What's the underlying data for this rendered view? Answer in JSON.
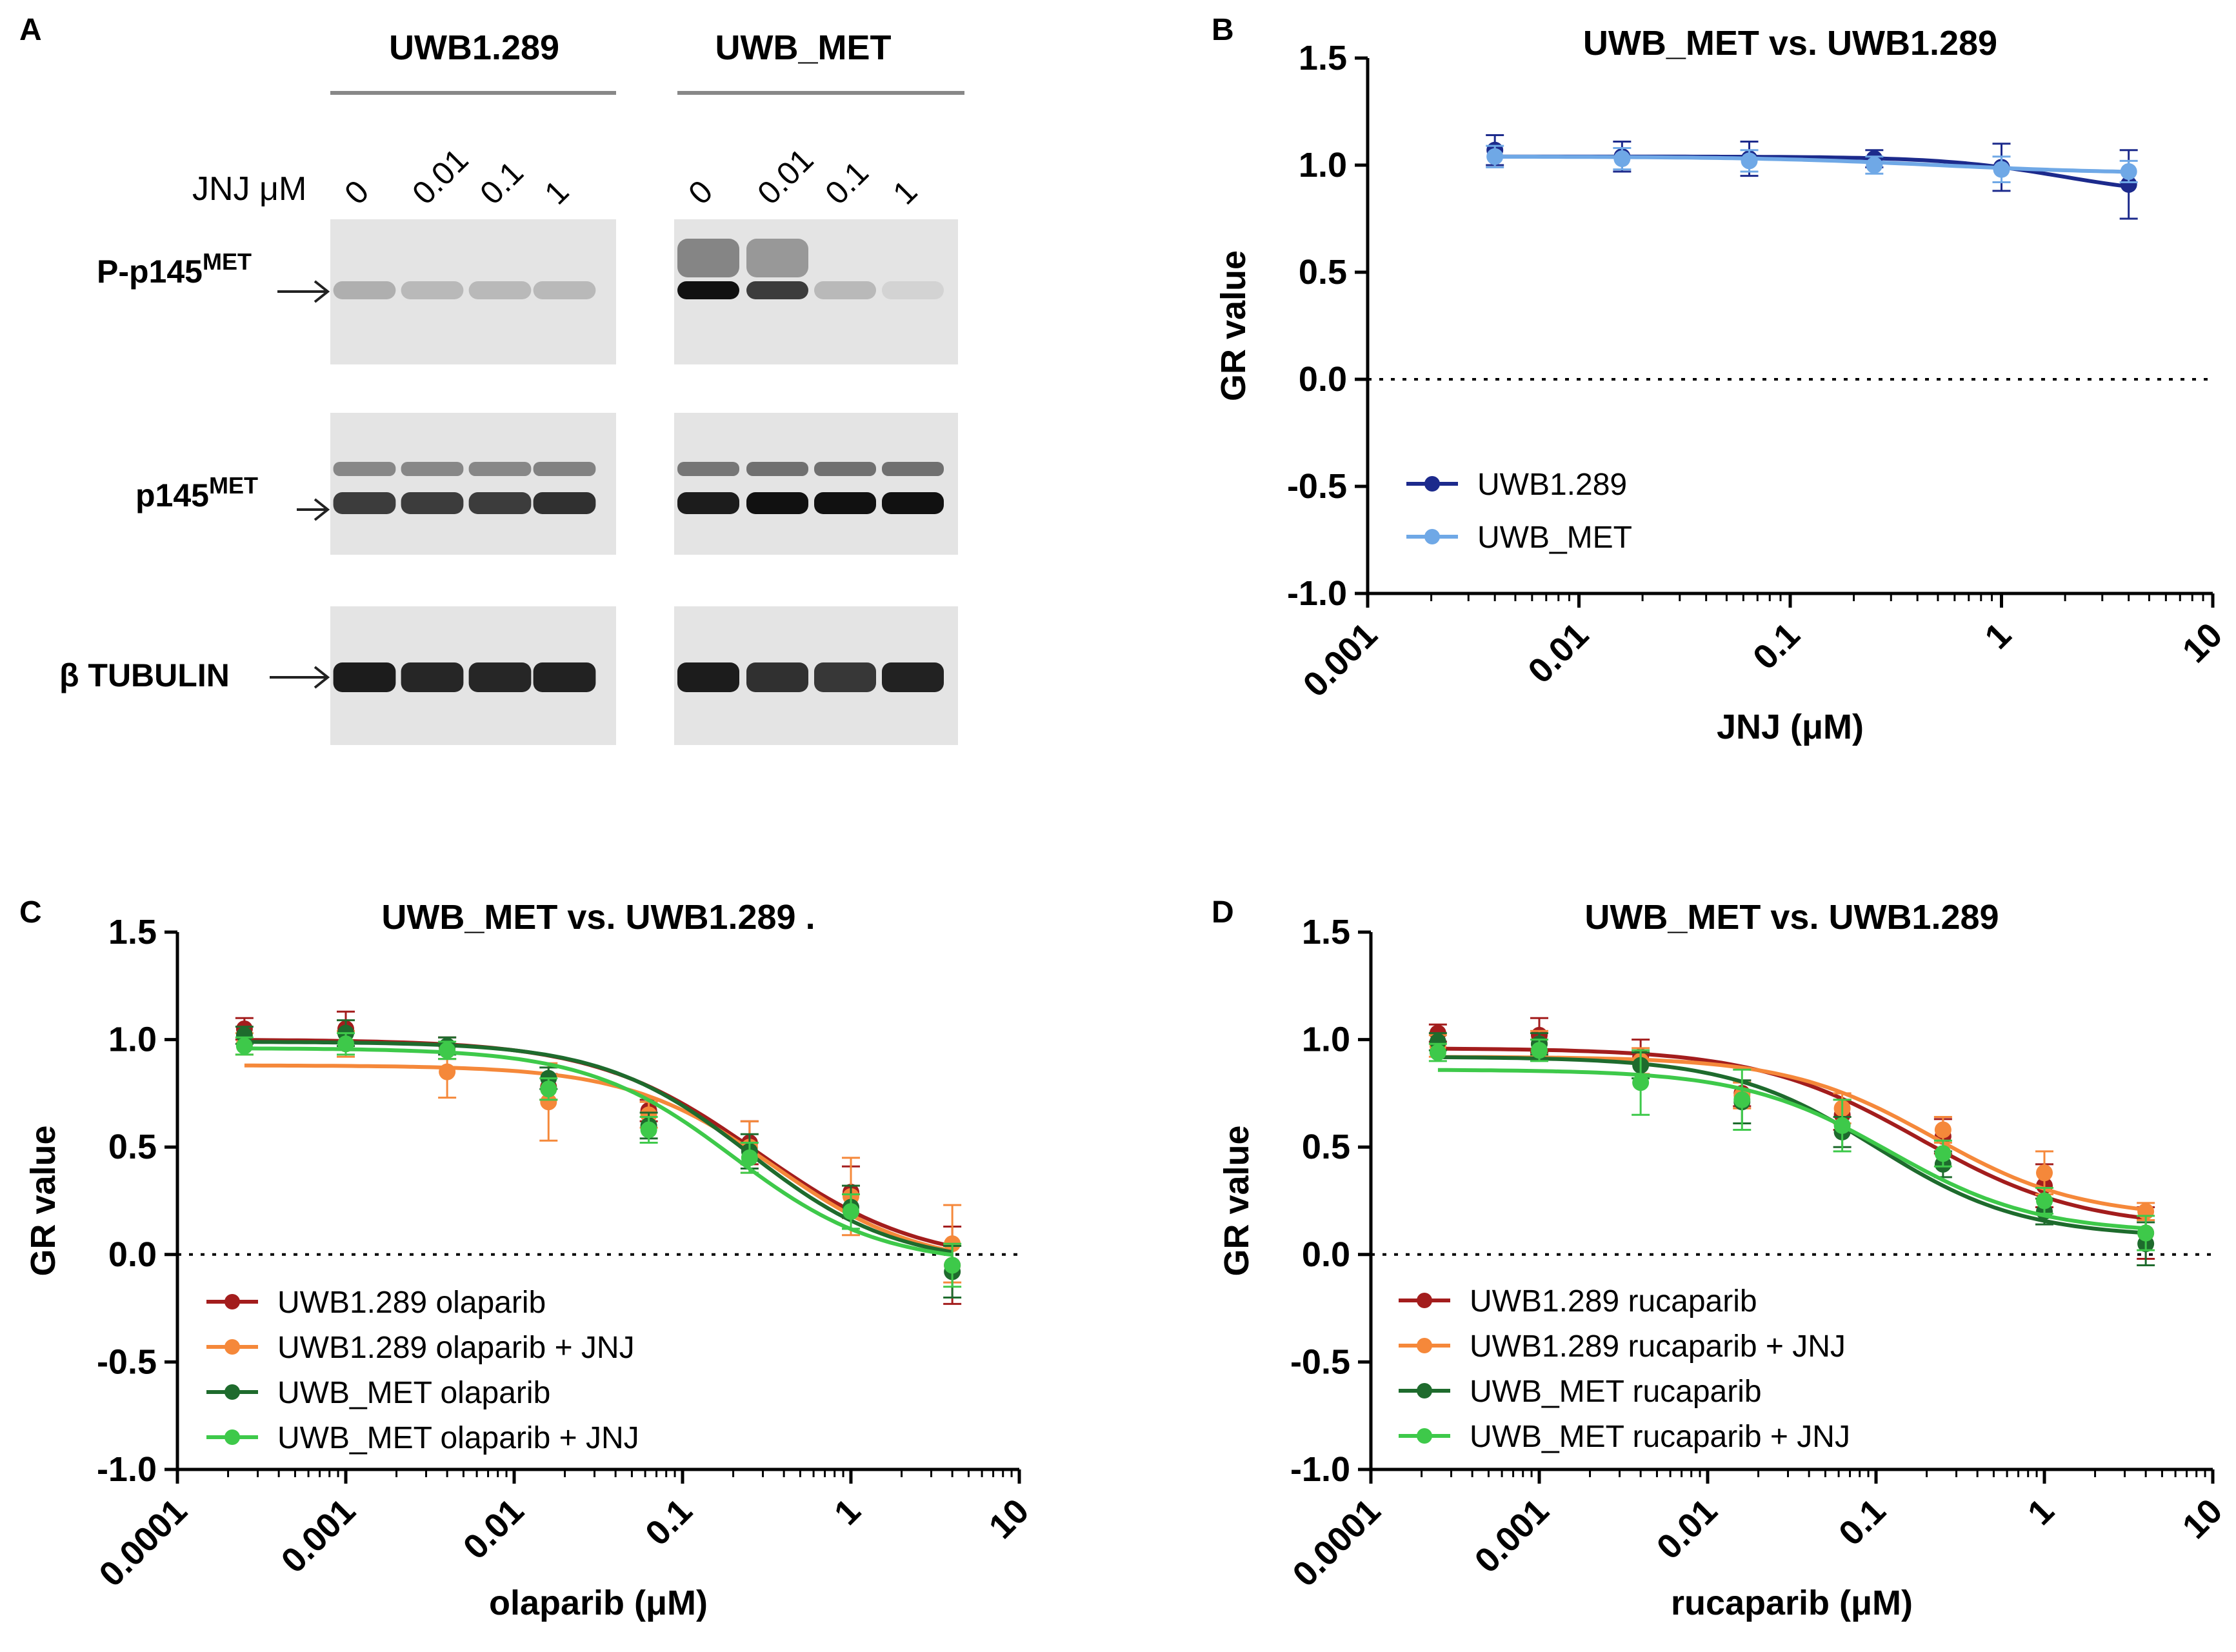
{
  "figure": {
    "panel_labels": [
      "A",
      "B",
      "C",
      "D"
    ]
  },
  "panel_a": {
    "cell_lines": [
      "UWB1.289",
      "UWB_MET"
    ],
    "dose_label": "JNJ μM",
    "doses": [
      "0",
      "0.01",
      "0.1",
      "1"
    ],
    "rows": [
      {
        "name": "P-p145",
        "sup": "MET"
      },
      {
        "name": "p145",
        "sup": "MET"
      },
      {
        "name": "β TUBULIN",
        "sup": ""
      }
    ],
    "band_intensity": {
      "UWB1.289": {
        "P-p145MET": [
          0.25,
          0.2,
          0.2,
          0.2
        ],
        "p145MET": [
          0.8,
          0.8,
          0.8,
          0.85
        ],
        "beta_tubulin": [
          0.95,
          0.9,
          0.9,
          0.92
        ]
      },
      "UWB_MET": {
        "P-p145MET": [
          1.0,
          0.8,
          0.2,
          0.08
        ],
        "p145MET": [
          0.95,
          1.0,
          1.0,
          1.0
        ],
        "beta_tubulin": [
          0.95,
          0.85,
          0.82,
          0.92
        ]
      }
    },
    "colors": {
      "blot_bg": "#e4e4e4",
      "band": "#111111",
      "bracket": "#888888"
    }
  },
  "chart_data": [
    {
      "id": "B",
      "type": "line",
      "title": "UWB_MET vs. UWB1.289",
      "xlabel": "JNJ (μM)",
      "ylabel": "GR value",
      "xscale": "log",
      "xlim": [
        0.001,
        10
      ],
      "ylim": [
        -1.0,
        1.5
      ],
      "xticks": [
        "0.001",
        "0.01",
        "0.1",
        "1",
        "10"
      ],
      "yticks": [
        "1.5",
        "1.0",
        "0.5",
        "0.0",
        "-0.5",
        "-1.0"
      ],
      "reference_line": 0,
      "legend_position": "lower-left",
      "series": [
        {
          "name": "UWB1.289",
          "color": "#1c2a8c",
          "x": [
            0.004,
            0.016,
            0.064,
            0.25,
            1,
            4
          ],
          "y": [
            1.07,
            1.04,
            1.03,
            1.03,
            0.99,
            0.91
          ],
          "err": [
            0.07,
            0.07,
            0.08,
            0.04,
            0.11,
            0.16
          ],
          "fit": {
            "top": 1.04,
            "bottom": 0.85,
            "ec50": 2.0,
            "hill": 1.5
          }
        },
        {
          "name": "UWB_MET",
          "color": "#6fa8e6",
          "x": [
            0.004,
            0.016,
            0.064,
            0.25,
            1,
            4
          ],
          "y": [
            1.04,
            1.03,
            1.02,
            1.0,
            0.98,
            0.97
          ],
          "err": [
            0.05,
            0.05,
            0.05,
            0.04,
            0.06,
            0.05
          ],
          "fit": {
            "top": 1.04,
            "bottom": 0.96,
            "ec50": 0.5,
            "hill": 1.0
          }
        }
      ]
    },
    {
      "id": "C",
      "type": "line",
      "title": "UWB_MET vs. UWB1.289 .",
      "xlabel": "olaparib (μM)",
      "ylabel": "GR value",
      "xscale": "log",
      "xlim": [
        0.0001,
        10
      ],
      "ylim": [
        -1.0,
        1.5
      ],
      "xticks": [
        "0.0001",
        "0.001",
        "0.01",
        "0.1",
        "1",
        "10"
      ],
      "yticks": [
        "1.5",
        "1.0",
        "0.5",
        "0.0",
        "-0.5",
        "-1.0"
      ],
      "reference_line": 0,
      "legend_position": "lower-left",
      "series": [
        {
          "name": "UWB1.289 olaparib",
          "color": "#a31d1d",
          "x": [
            0.00025,
            0.001,
            0.004,
            0.016,
            0.063,
            0.25,
            1,
            4
          ],
          "y": [
            1.05,
            1.05,
            0.96,
            0.78,
            0.67,
            0.52,
            0.29,
            -0.05
          ],
          "err": [
            0.05,
            0.08,
            0.05,
            0.06,
            0.05,
            0.1,
            0.12,
            0.18
          ],
          "fit": {
            "top": 1.0,
            "bottom": -0.05,
            "ec50": 0.28,
            "hill": 0.9
          }
        },
        {
          "name": "UWB1.289 olaparib + JNJ",
          "color": "#f5883a",
          "x": [
            0.00025,
            0.001,
            0.004,
            0.016,
            0.063,
            0.25,
            1,
            4
          ],
          "y": [
            0.98,
            0.98,
            0.85,
            0.71,
            0.65,
            0.5,
            0.27,
            0.05
          ],
          "err": [
            0.05,
            0.06,
            0.12,
            0.18,
            0.06,
            0.12,
            0.18,
            0.18
          ],
          "fit": {
            "top": 0.88,
            "bottom": -0.06,
            "ec50": 0.35,
            "hill": 1.0
          }
        },
        {
          "name": "UWB_MET olaparib",
          "color": "#1e6b2d",
          "x": [
            0.00025,
            0.001,
            0.004,
            0.016,
            0.063,
            0.25,
            1,
            4
          ],
          "y": [
            1.02,
            1.03,
            0.97,
            0.82,
            0.6,
            0.48,
            0.22,
            -0.08
          ],
          "err": [
            0.04,
            0.06,
            0.04,
            0.05,
            0.06,
            0.08,
            0.1,
            0.12
          ],
          "fit": {
            "top": 0.99,
            "bottom": -0.05,
            "ec50": 0.25,
            "hill": 1.0
          }
        },
        {
          "name": "UWB_MET olaparib + JNJ",
          "color": "#3ec94a",
          "x": [
            0.00025,
            0.001,
            0.004,
            0.016,
            0.063,
            0.25,
            1,
            4
          ],
          "y": [
            0.97,
            0.98,
            0.95,
            0.77,
            0.58,
            0.45,
            0.2,
            -0.05
          ],
          "err": [
            0.04,
            0.05,
            0.04,
            0.05,
            0.06,
            0.07,
            0.08,
            0.1
          ],
          "fit": {
            "top": 0.96,
            "bottom": -0.05,
            "ec50": 0.2,
            "hill": 1.0
          }
        }
      ]
    },
    {
      "id": "D",
      "type": "line",
      "title": "UWB_MET vs. UWB1.289",
      "xlabel": "rucaparib (μM)",
      "ylabel": "GR value",
      "xscale": "log",
      "xlim": [
        0.0001,
        10
      ],
      "ylim": [
        -1.0,
        1.5
      ],
      "xticks": [
        "0.0001",
        "0.001",
        "0.01",
        "0.1",
        "1",
        "10"
      ],
      "yticks": [
        "1.5",
        "1.0",
        "0.5",
        "0.0",
        "-0.5",
        "-1.0"
      ],
      "reference_line": 0,
      "legend_position": "lower-left",
      "series": [
        {
          "name": "UWB1.289 rucaparib",
          "color": "#a31d1d",
          "x": [
            0.00025,
            0.001,
            0.004,
            0.016,
            0.063,
            0.25,
            1,
            4
          ],
          "y": [
            1.03,
            1.02,
            0.92,
            0.75,
            0.65,
            0.55,
            0.32,
            0.1
          ],
          "err": [
            0.04,
            0.08,
            0.08,
            0.06,
            0.07,
            0.08,
            0.1,
            0.12
          ],
          "fit": {
            "top": 0.96,
            "bottom": 0.12,
            "ec50": 0.18,
            "hill": 0.9
          }
        },
        {
          "name": "UWB1.289 rucaparib + JNJ",
          "color": "#f5883a",
          "x": [
            0.00025,
            0.001,
            0.004,
            0.016,
            0.063,
            0.25,
            1,
            4
          ],
          "y": [
            0.97,
            0.98,
            0.9,
            0.74,
            0.68,
            0.58,
            0.38,
            0.2
          ],
          "err": [
            0.05,
            0.06,
            0.06,
            0.06,
            0.07,
            0.06,
            0.1,
            0.04
          ],
          "fit": {
            "top": 0.92,
            "bottom": 0.17,
            "ec50": 0.22,
            "hill": 1.0
          }
        },
        {
          "name": "UWB_MET rucaparib",
          "color": "#1e6b2d",
          "x": [
            0.00025,
            0.001,
            0.004,
            0.016,
            0.063,
            0.25,
            1,
            4
          ],
          "y": [
            0.99,
            0.98,
            0.88,
            0.71,
            0.57,
            0.42,
            0.2,
            0.05
          ],
          "err": [
            0.04,
            0.05,
            0.06,
            0.1,
            0.07,
            0.06,
            0.06,
            0.1
          ],
          "fit": {
            "top": 0.92,
            "bottom": 0.08,
            "ec50": 0.1,
            "hill": 1.0
          }
        },
        {
          "name": "UWB_MET rucaparib +  JNJ",
          "color": "#3ec94a",
          "x": [
            0.00025,
            0.001,
            0.004,
            0.016,
            0.063,
            0.25,
            1,
            4
          ],
          "y": [
            0.94,
            0.95,
            0.8,
            0.72,
            0.6,
            0.47,
            0.25,
            0.1
          ],
          "err": [
            0.04,
            0.05,
            0.15,
            0.14,
            0.12,
            0.06,
            0.06,
            0.08
          ],
          "fit": {
            "top": 0.86,
            "bottom": 0.1,
            "ec50": 0.12,
            "hill": 1.0
          }
        }
      ]
    }
  ]
}
